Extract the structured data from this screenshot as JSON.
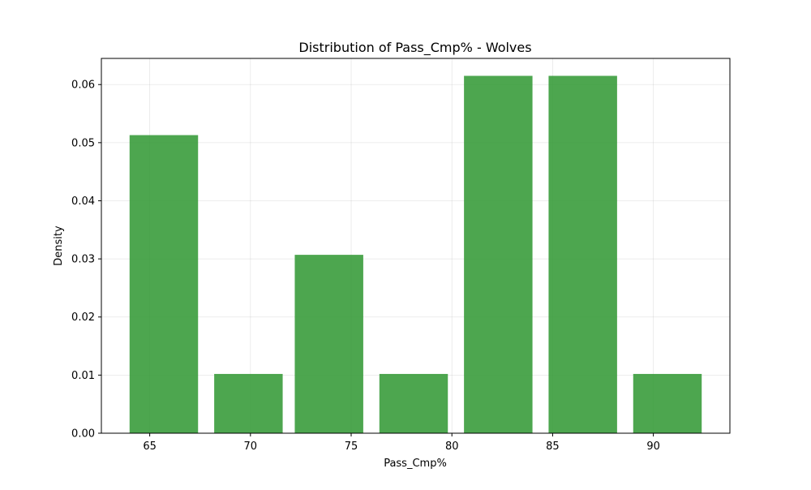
{
  "chart_data": {
    "type": "bar",
    "title": "Distribution of Pass_Cmp% - Wolves",
    "xlabel": "Pass_Cmp%",
    "ylabel": "Density",
    "xlim": [
      62.6,
      93.8
    ],
    "ylim": [
      0,
      0.0645
    ],
    "xticks": [
      65,
      70,
      75,
      80,
      85,
      90
    ],
    "yticks": [
      0.0,
      0.01,
      0.02,
      0.03,
      0.04,
      0.05,
      0.06
    ],
    "ytick_decimals": 2,
    "grid": true,
    "bar_color": "#2e9630",
    "bins": [
      {
        "start": 64.0,
        "end": 67.4,
        "value": 0.0513
      },
      {
        "start": 68.2,
        "end": 71.6,
        "value": 0.0102
      },
      {
        "start": 72.2,
        "end": 75.6,
        "value": 0.0307
      },
      {
        "start": 76.4,
        "end": 79.8,
        "value": 0.0102
      },
      {
        "start": 80.6,
        "end": 84.0,
        "value": 0.0615
      },
      {
        "start": 84.8,
        "end": 88.2,
        "value": 0.0615
      },
      {
        "start": 89.0,
        "end": 92.4,
        "value": 0.0102
      }
    ]
  }
}
